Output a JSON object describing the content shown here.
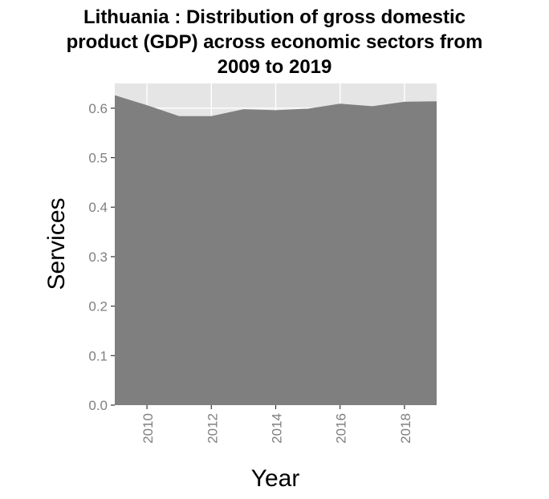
{
  "chart_data": {
    "type": "area",
    "title_lines": [
      "Lithuania : Distribution of gross domestic",
      "product (GDP) across economic sectors from",
      "2009 to 2019"
    ],
    "xlabel": "Year",
    "ylabel": "Services",
    "x": [
      2009,
      2010,
      2011,
      2012,
      2013,
      2014,
      2015,
      2016,
      2017,
      2018,
      2019
    ],
    "series": [
      {
        "values": [
          0.626,
          0.606,
          0.584,
          0.584,
          0.598,
          0.596,
          0.599,
          0.609,
          0.604,
          0.613,
          0.614
        ]
      }
    ],
    "xlim": [
      2009,
      2019
    ],
    "ylim": [
      0,
      0.65
    ],
    "x_ticks": [
      "2010",
      "2012",
      "2014",
      "2016",
      "2018"
    ],
    "y_ticks": [
      "0.0",
      "0.1",
      "0.2",
      "0.3",
      "0.4",
      "0.5",
      "0.6"
    ],
    "grid": true,
    "colors": {
      "area": "#7f7f7f",
      "panel": "#e5e5e5",
      "grid": "#ffffff",
      "tick_text": "#7f7f7f"
    }
  }
}
